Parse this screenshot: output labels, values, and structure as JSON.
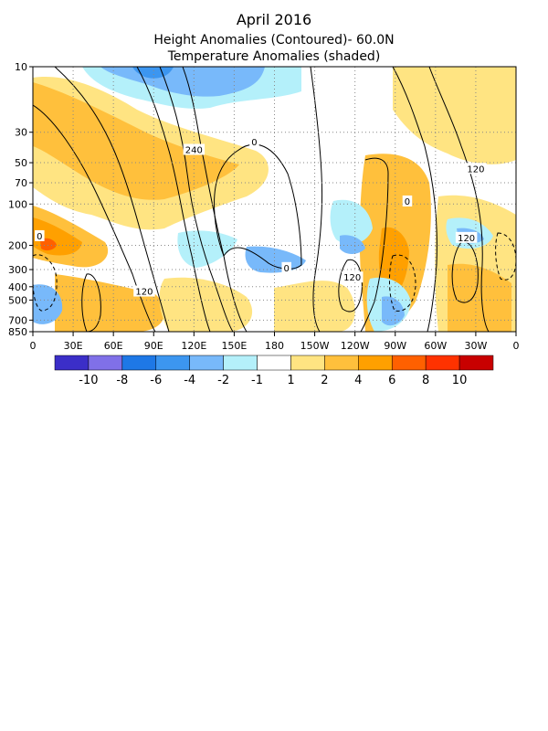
{
  "chart_data": {
    "type": "heatmap",
    "title": "April 2016",
    "subtitle_1": "Height Anomalies (Contoured)- 60.0N",
    "subtitle_2": "Temperature Anomalies (shaded)",
    "xlabel": "",
    "ylabel": "",
    "x_ticks": [
      "0",
      "30E",
      "60E",
      "90E",
      "120E",
      "150E",
      "180",
      "150W",
      "120W",
      "90W",
      "60W",
      "30W",
      "0"
    ],
    "x_tick_lon": [
      0,
      30,
      60,
      90,
      120,
      150,
      180,
      210,
      240,
      270,
      300,
      330,
      360
    ],
    "y_ticks": [
      "10",
      "30",
      "50",
      "70",
      "100",
      "200",
      "300",
      "400",
      "500",
      "700",
      "850"
    ],
    "y_tick_hpa": [
      10,
      30,
      50,
      70,
      100,
      200,
      300,
      400,
      500,
      700,
      850
    ],
    "y_scale": "log-pressure, inverted",
    "xlim": [
      0,
      360
    ],
    "ylim": [
      10,
      850
    ],
    "grid": "dotted",
    "colorbar": {
      "labels": [
        "-10",
        "-8",
        "-6",
        "-4",
        "-2",
        "-1",
        "1",
        "2",
        "4",
        "6",
        "8",
        "10"
      ],
      "colors": [
        "#3b2ec8",
        "#8070e8",
        "#1e78e6",
        "#3c96f0",
        "#78b9fa",
        "#b4f0fa",
        "#ffffff",
        "#ffe482",
        "#ffc03c",
        "#ffa000",
        "#ff6000",
        "#ff3200",
        "#c80000"
      ]
    },
    "contour_labels": [
      {
        "text": "240",
        "lon": 120,
        "p": 40
      },
      {
        "text": "0",
        "lon": 165,
        "p": 35
      },
      {
        "text": "120",
        "lon": 330,
        "p": 55
      },
      {
        "text": "0",
        "lon": 279,
        "p": 95
      },
      {
        "text": "0",
        "lon": 5,
        "p": 170
      },
      {
        "text": "120",
        "lon": 323,
        "p": 175
      },
      {
        "text": "0",
        "lon": 189,
        "p": 290
      },
      {
        "text": "120",
        "lon": 238,
        "p": 340
      },
      {
        "text": "120",
        "lon": 83,
        "p": 430
      }
    ]
  }
}
